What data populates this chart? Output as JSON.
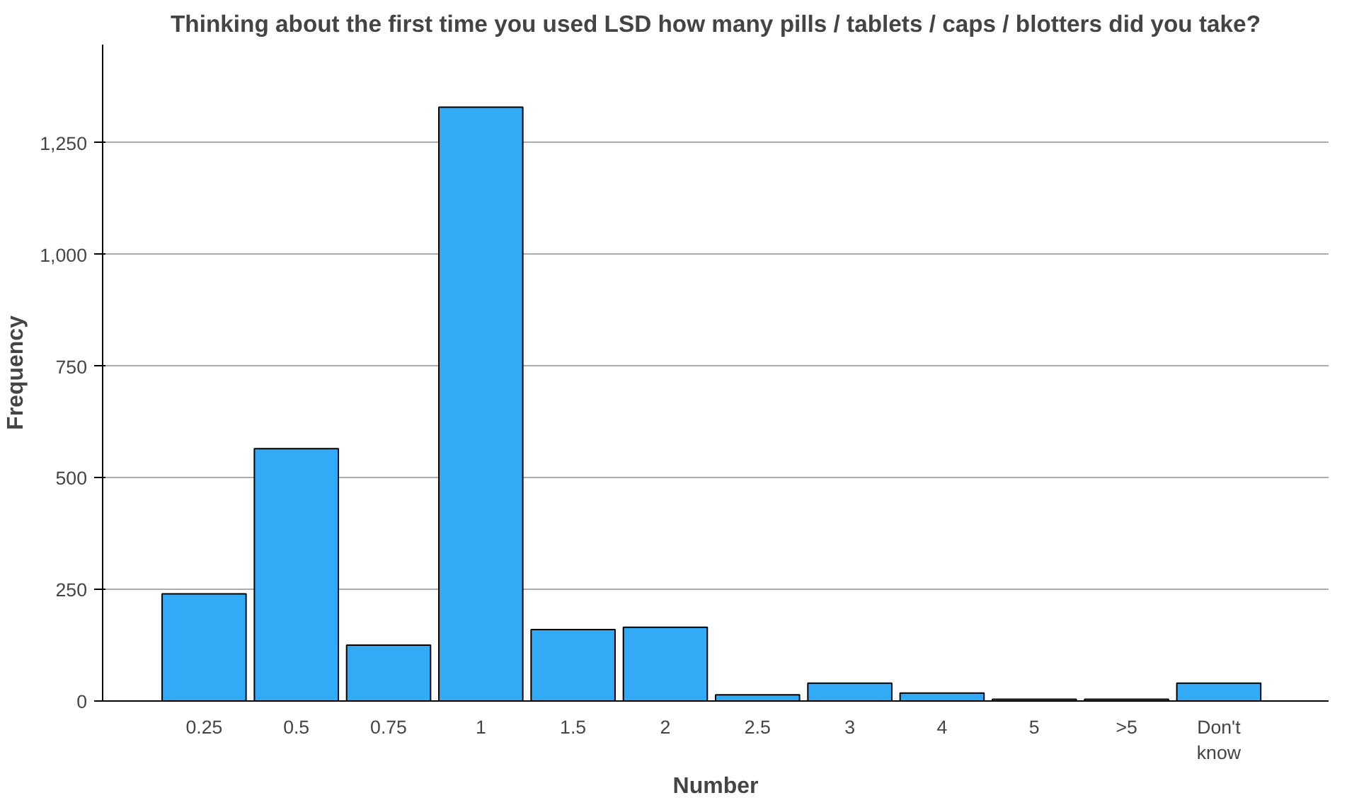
{
  "chart_data": {
    "type": "bar",
    "title": "Thinking about the first time you used LSD how many pills / tablets / caps / blotters did you take?",
    "xlabel": "Number",
    "ylabel": "Frequency",
    "categories": [
      "0.25",
      "0.5",
      "0.75",
      "1",
      "1.5",
      "2",
      "2.5",
      "3",
      "4",
      "5",
      ">5",
      "Don't\nknow"
    ],
    "values": [
      240,
      565,
      125,
      1330,
      160,
      165,
      14,
      40,
      18,
      4,
      4,
      40
    ],
    "color": "#33aaf5",
    "ylim": [
      0,
      1470
    ],
    "yticks": [
      0,
      {
        "value": 250,
        "label": "250"
      },
      {
        "value": 500,
        "label": "500"
      },
      {
        "value": 750,
        "label": "750"
      },
      {
        "value": 1000,
        "label": "1,000"
      },
      {
        "value": 1250,
        "label": "1,250"
      }
    ],
    "grid": "y"
  }
}
